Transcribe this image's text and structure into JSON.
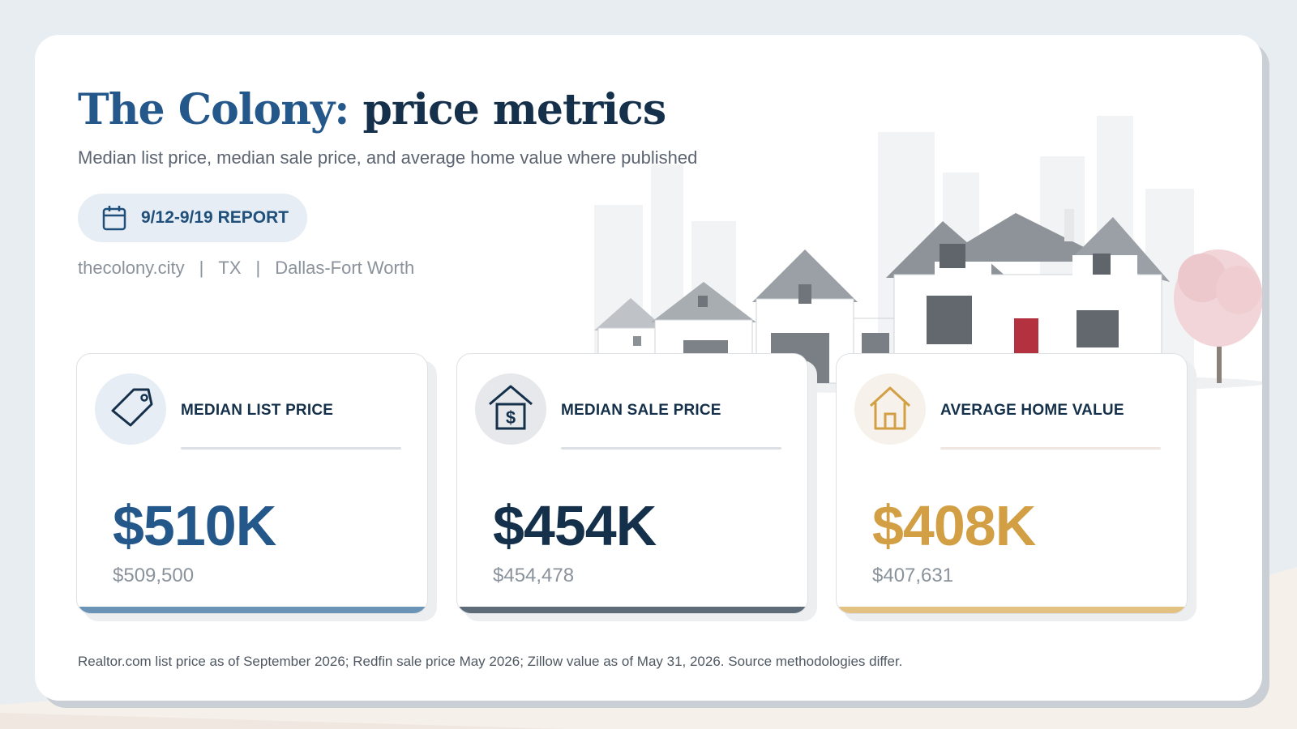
{
  "header": {
    "title_accent": "The Colony:",
    "title_rest": "price metrics",
    "subtitle": "Median list price, median sale price, and average home value where published"
  },
  "report": {
    "label": "9/12-9/19 REPORT",
    "icon": "calendar-icon"
  },
  "meta": {
    "website": "thecolony.city",
    "state": "TX",
    "region": "Dallas-Fort Worth",
    "separator": "|"
  },
  "cards": [
    {
      "label": "MEDIAN LIST PRICE",
      "value": "$510K",
      "exact": "$509,500",
      "icon": "price-tag-icon",
      "color": "#24578a",
      "bar_color": "#6b93b5",
      "rule_color": "#dcdfe3",
      "icon_bg": "#e6edf4"
    },
    {
      "label": "MEDIAN SALE PRICE",
      "value": "$454K",
      "exact": "$454,478",
      "icon": "house-dollar-icon",
      "color": "#15304a",
      "bar_color": "#5d6b78",
      "rule_color": "#dcdfe3",
      "icon_bg": "#e6e8eb"
    },
    {
      "label": "AVERAGE HOME VALUE",
      "value": "$408K",
      "exact": "$407,631",
      "icon": "home-icon",
      "color": "#d29f45",
      "bar_color": "#e3c183",
      "rule_color": "#f1e5e1",
      "icon_bg": "#f6f1ea"
    }
  ],
  "footnote": "Realtor.com list price as of September 2026; Redfin sale price May 2026; Zillow value as of May 31, 2026. Source methodologies differ."
}
